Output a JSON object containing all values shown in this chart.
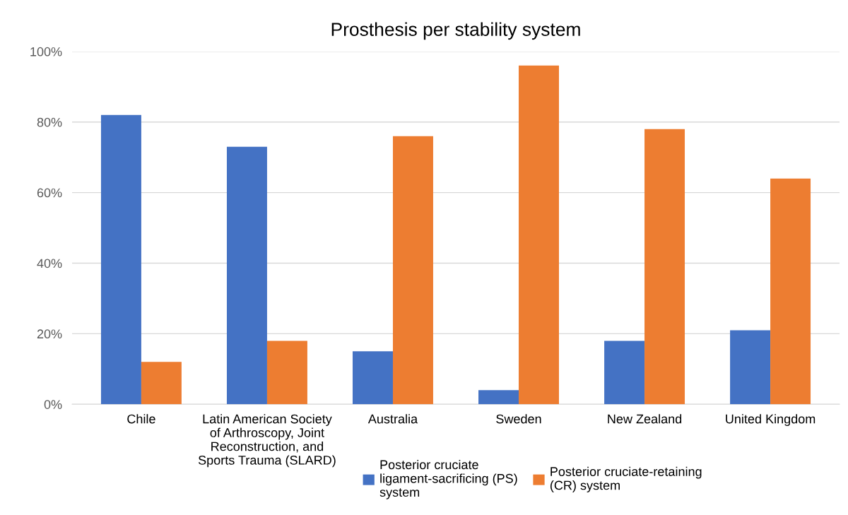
{
  "chart_data": {
    "type": "bar",
    "title": "Prosthesis per stability system",
    "categories": [
      "Chile",
      "Latin American Society of Arthroscopy, Joint Reconstruction, and Sports Trauma (SLARD)",
      "Australia",
      "Sweden",
      "New Zealand",
      "United Kingdom"
    ],
    "series": [
      {
        "name": "Posterior cruciate ligament-sacrificing (PS) system",
        "color": "#4472c4",
        "values": [
          82,
          73,
          15,
          4,
          18,
          21
        ]
      },
      {
        "name": "Posterior cruciate-retaining (CR) system",
        "color": "#ed7d31",
        "values": [
          12,
          18,
          76,
          96,
          78,
          64
        ]
      }
    ],
    "ylim": [
      0,
      100
    ],
    "yticks": [
      {
        "value": 0,
        "label": "0%"
      },
      {
        "value": 20,
        "label": "20%"
      },
      {
        "value": 40,
        "label": "40%"
      },
      {
        "value": 60,
        "label": "60%"
      },
      {
        "value": 80,
        "label": "80%"
      },
      {
        "value": 100,
        "label": "100%"
      }
    ],
    "grid": "y",
    "legend": "bottom"
  }
}
